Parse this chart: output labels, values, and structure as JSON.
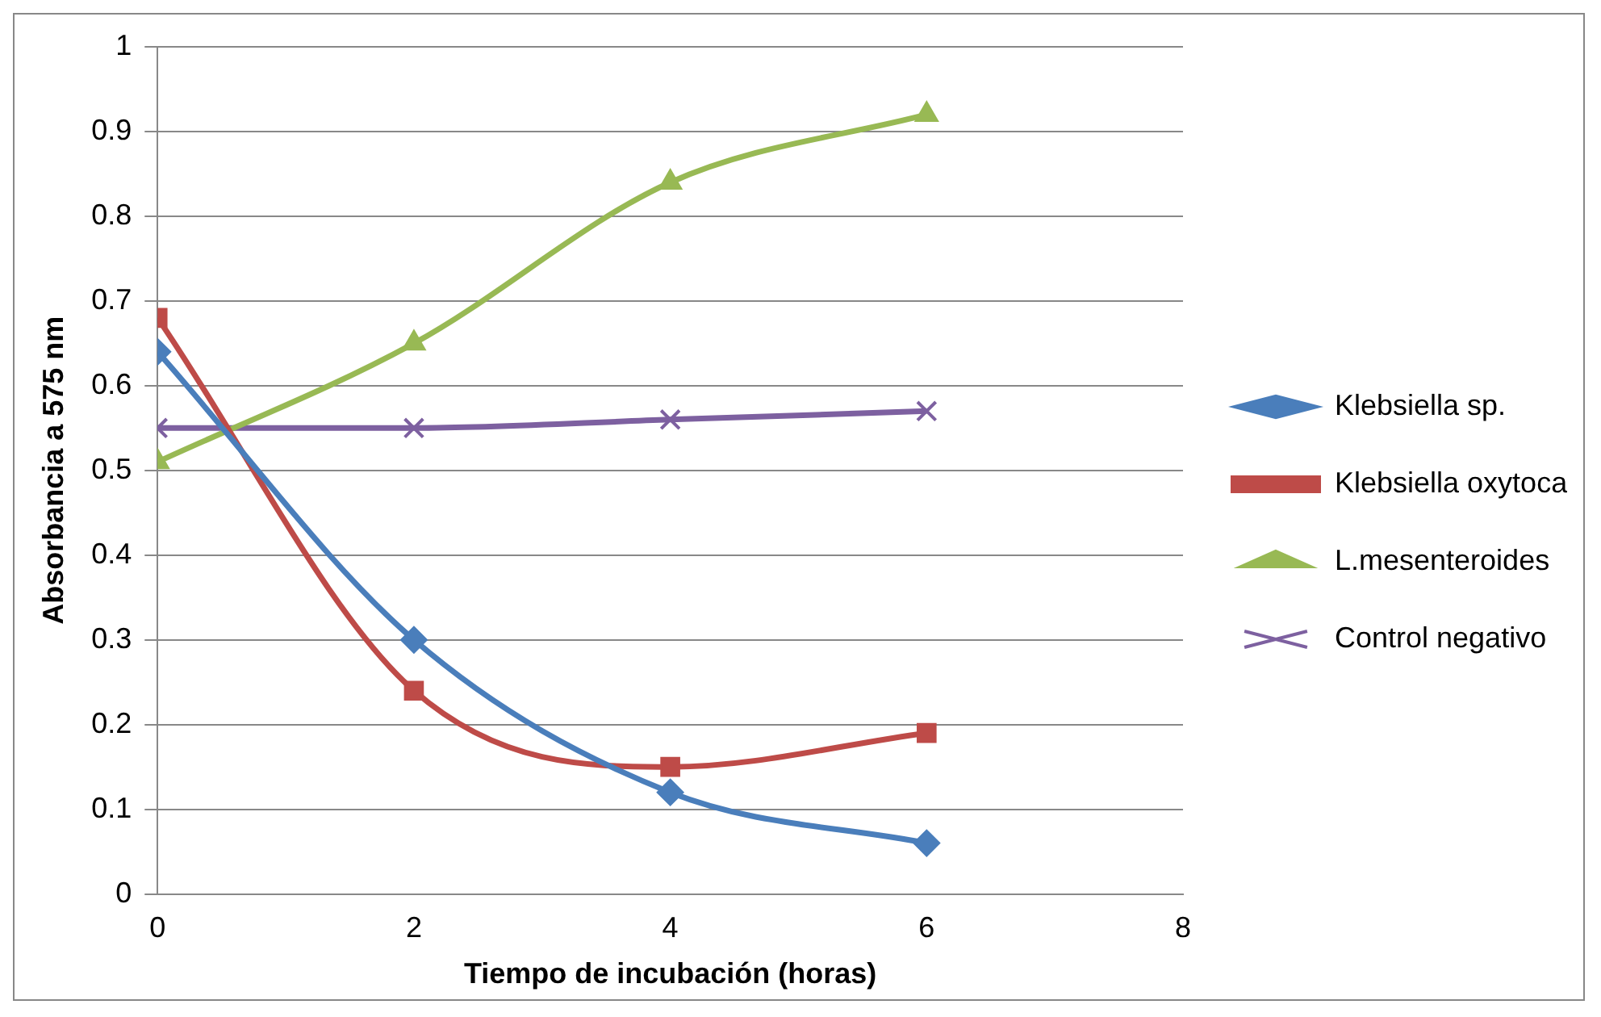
{
  "chart_data": {
    "type": "line",
    "xlabel": "Tiempo de incubación (horas)",
    "ylabel": "Absorbancia a 575 nm",
    "x": [
      0,
      2,
      4,
      6
    ],
    "series": [
      {
        "name": "Klebsiella sp.",
        "color": "#4a7ebb",
        "marker": "diamond",
        "values": [
          0.64,
          0.3,
          0.12,
          0.06
        ]
      },
      {
        "name": "Klebsiella oxytoca",
        "color": "#be4b48",
        "marker": "square",
        "values": [
          0.68,
          0.24,
          0.15,
          0.19
        ]
      },
      {
        "name": "L.mesenteroides",
        "color": "#98b954",
        "marker": "triangle",
        "values": [
          0.51,
          0.65,
          0.84,
          0.92
        ]
      },
      {
        "name": "Control negativo",
        "color": "#7d60a0",
        "marker": "cross",
        "values": [
          0.55,
          0.55,
          0.56,
          0.57
        ]
      }
    ],
    "xlim": [
      0,
      8
    ],
    "xticks": [
      0,
      2,
      4,
      6,
      8
    ],
    "ylim": [
      0,
      1
    ],
    "yticks": [
      0,
      0.1,
      0.2,
      0.3,
      0.4,
      0.5,
      0.6,
      0.7,
      0.8,
      0.9,
      1
    ],
    "grid": "y",
    "legend": "right"
  }
}
